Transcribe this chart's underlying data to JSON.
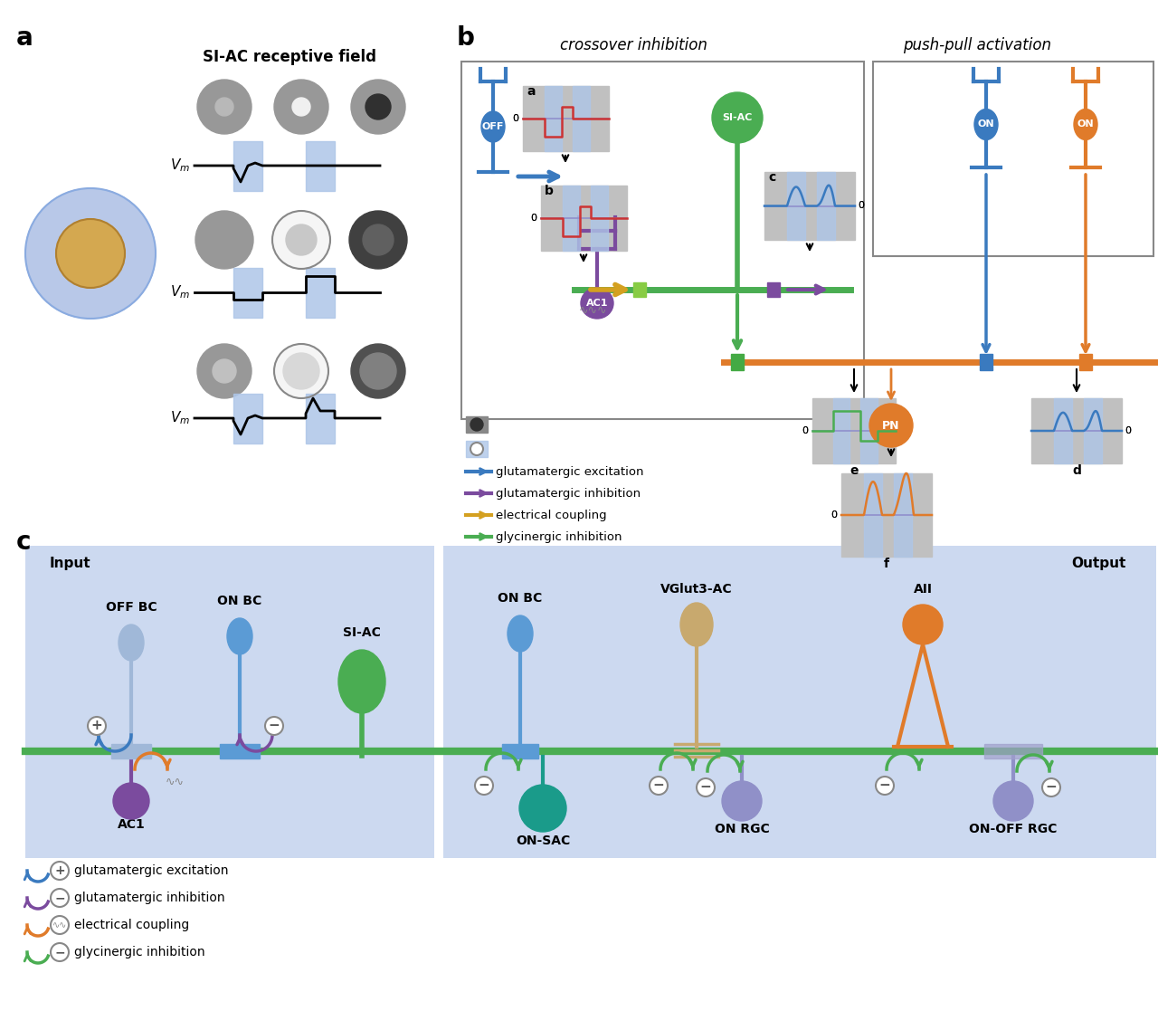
{
  "fig_width": 12.8,
  "fig_height": 11.17,
  "bg_color": "#ffffff",
  "blue_light": "#aec6e8",
  "blue_dark": "#3a7abf",
  "blue_medium": "#5b9bd5",
  "orange_color": "#e07b2a",
  "green_color": "#4aad52",
  "purple_color": "#7b4b9e",
  "yellow_color": "#d4a020",
  "gray_light": "#b0b0b0",
  "gray_dark": "#404040",
  "teal_color": "#1a9b8a",
  "tan_color": "#c8a96e",
  "panel_c_bg": "#ccd9f0",
  "title_crossover": "crossover inhibition",
  "title_pushpull": "push-pull activation",
  "siac_label": "SI-AC receptive field",
  "legend_b_items": [
    "glutamatergic excitation",
    "glutamatergic inhibition",
    "electrical coupling",
    "glycinergic inhibition"
  ],
  "legend_b_colors": [
    "#3a7abf",
    "#7b4b9e",
    "#d4a020",
    "#4aad52"
  ],
  "legend_c_items": [
    "glutamatergic excitation",
    "glutamatergic inhibition",
    "electrical coupling",
    "glycinergic inhibition"
  ],
  "legend_c_colors": [
    "#3a7abf",
    "#7b4b9e",
    "#e07b2a",
    "#4aad52"
  ]
}
